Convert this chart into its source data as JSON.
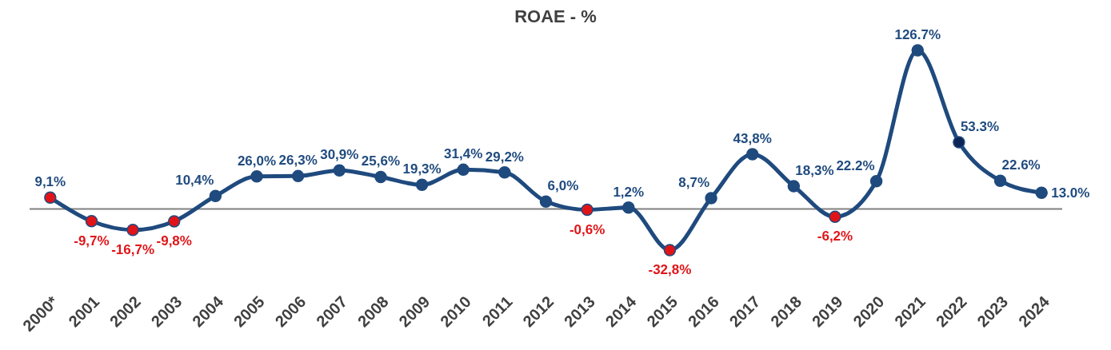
{
  "chart_data": {
    "type": "line",
    "title": "ROAE - %",
    "categories": [
      "2000*",
      "2001",
      "2002",
      "2003",
      "2004",
      "2005",
      "2006",
      "2007",
      "2008",
      "2009",
      "2010",
      "2011",
      "2012",
      "2013",
      "2014",
      "2015",
      "2016",
      "2017",
      "2018",
      "2019",
      "2020",
      "2021",
      "2022",
      "2023",
      "2024"
    ],
    "series": [
      {
        "color": "#1f4a7e",
        "values": [
          9.1,
          -9.7,
          -16.7,
          -9.8,
          10.4,
          26.0,
          26.3,
          30.9,
          25.6,
          19.3,
          31.4,
          29.2,
          6.0,
          -0.6,
          1.2,
          -32.8,
          8.7,
          43.8,
          18.3,
          -6.2,
          22.2,
          126.7,
          53.3,
          22.6,
          13.0
        ],
        "colors": [
          "#e01418",
          "#e01418",
          "#e01418",
          "#e01418",
          "#1f4a7e",
          "#1f4a7e",
          "#1f4a7e",
          "#1f4a7e",
          "#1f4a7e",
          "#1f4a7e",
          "#1f4a7e",
          "#1f4a7e",
          "#1f4a7e",
          "#e01418",
          "#1f4a7e",
          "#e01418",
          "#1f4a7e",
          "#1f4a7e",
          "#1f4a7e",
          "#e01418",
          "#1f4a7e",
          "#1f4a7e",
          "#0b2656",
          "#1f4a7e",
          "#1f4a7e"
        ],
        "value_labels": [
          "9,1%",
          "-9,7%",
          "-16,7%",
          "-9,8%",
          "10,4%",
          "26,0%",
          "26,3%",
          "30,9%",
          "25,6%",
          "19,3%",
          "31,4%",
          "29,2%",
          "6,0%",
          "-0,6%",
          "1,2%",
          "-32,8%",
          "8,7%",
          "43,8%",
          "18,3%",
          "-6,2%",
          "22.2%",
          "126.7%",
          "53.3%",
          "22.6%",
          "13.0%"
        ]
      }
    ],
    "marker": "circle",
    "line_style": "solid",
    "ref_lines": [
      {
        "axis": "y",
        "value": 0,
        "color": "#808080"
      }
    ]
  }
}
